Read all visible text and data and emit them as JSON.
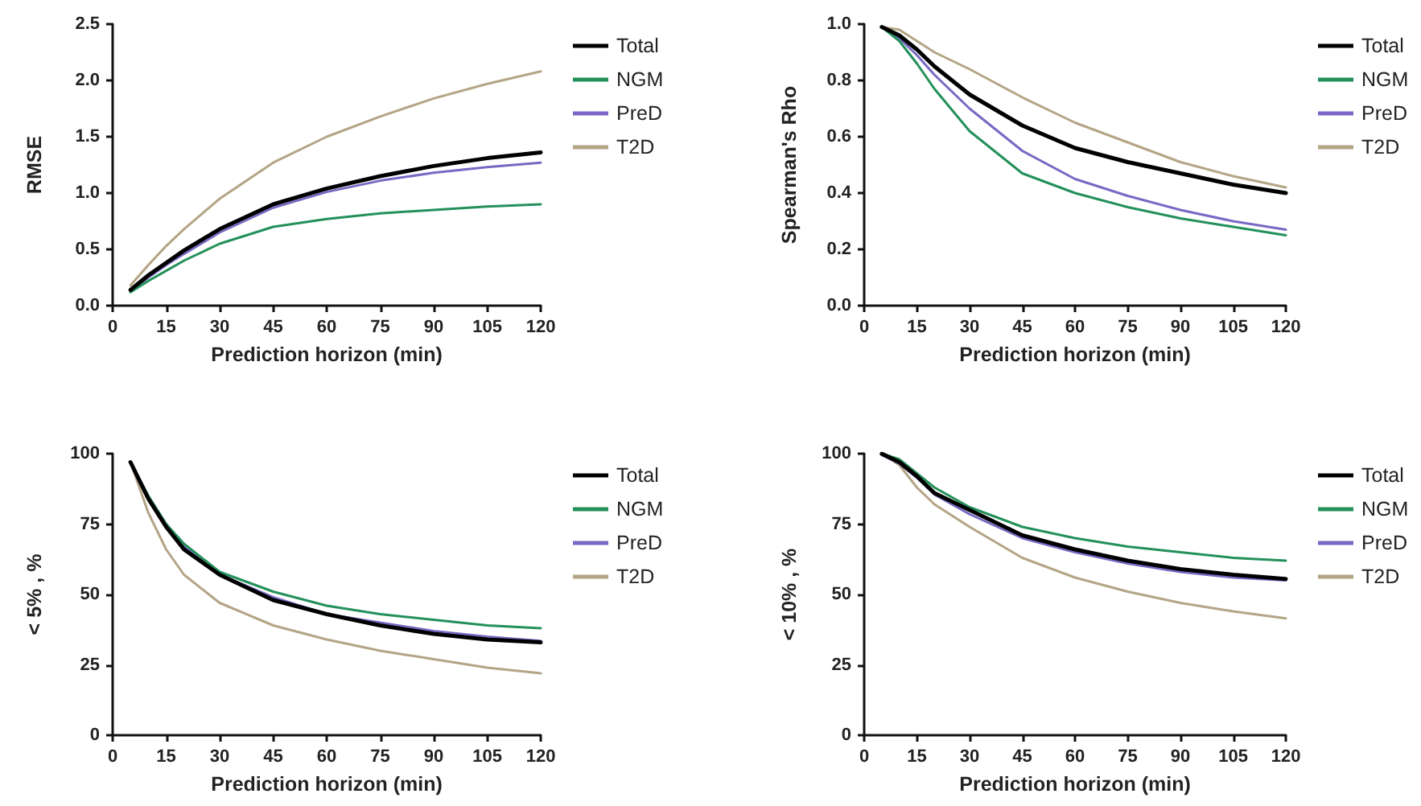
{
  "chart_data": [
    {
      "type": "line",
      "xlabel": "Prediction horizon (min)",
      "ylabel": "RMSE",
      "x": [
        5,
        10,
        15,
        20,
        30,
        45,
        60,
        75,
        90,
        105,
        120
      ],
      "xlim": [
        0,
        120
      ],
      "xticks": [
        0,
        15,
        30,
        45,
        60,
        75,
        90,
        105,
        120
      ],
      "ylim": [
        0,
        2.5
      ],
      "yticks": [
        {
          "value": 0,
          "label": "0.0"
        },
        0.5,
        {
          "value": 1,
          "label": "1.0"
        },
        1.5,
        {
          "value": 2,
          "label": "2.0"
        },
        2.5
      ],
      "legend": "right",
      "grid": false,
      "marker": "none",
      "line_style": "solid",
      "series": [
        {
          "name": "Total",
          "color": "#000000",
          "values": [
            0.14,
            0.27,
            0.38,
            0.49,
            0.68,
            0.9,
            1.04,
            1.15,
            1.24,
            1.31,
            1.36
          ]
        },
        {
          "name": "NGM",
          "color": "#23905a",
          "values": [
            0.12,
            0.22,
            0.31,
            0.4,
            0.55,
            0.7,
            0.77,
            0.82,
            0.85,
            0.88,
            0.9
          ]
        },
        {
          "name": "PreD",
          "color": "#7a68c4",
          "values": [
            0.13,
            0.25,
            0.36,
            0.46,
            0.65,
            0.87,
            1.01,
            1.11,
            1.18,
            1.23,
            1.27
          ]
        },
        {
          "name": "T2D",
          "color": "#b3a585",
          "values": [
            0.18,
            0.36,
            0.53,
            0.68,
            0.95,
            1.27,
            1.5,
            1.68,
            1.84,
            1.97,
            2.08
          ]
        }
      ]
    },
    {
      "type": "line",
      "xlabel": "Prediction horizon (min)",
      "ylabel": "Spearman's Rho",
      "x": [
        5,
        10,
        15,
        20,
        30,
        45,
        60,
        75,
        90,
        105,
        120
      ],
      "xlim": [
        0,
        120
      ],
      "xticks": [
        0,
        15,
        30,
        45,
        60,
        75,
        90,
        105,
        120
      ],
      "ylim": [
        0,
        1
      ],
      "yticks": [
        {
          "value": 0,
          "label": "0.0"
        },
        0.2,
        0.4,
        0.6,
        0.8,
        {
          "value": 1,
          "label": "1.0"
        }
      ],
      "legend": "right",
      "grid": false,
      "marker": "none",
      "line_style": "solid",
      "series": [
        {
          "name": "Total",
          "color": "#000000",
          "values": [
            0.99,
            0.96,
            0.91,
            0.85,
            0.75,
            0.64,
            0.56,
            0.51,
            0.47,
            0.43,
            0.4
          ]
        },
        {
          "name": "NGM",
          "color": "#23905a",
          "values": [
            0.99,
            0.94,
            0.86,
            0.77,
            0.62,
            0.47,
            0.4,
            0.35,
            0.31,
            0.28,
            0.25
          ]
        },
        {
          "name": "PreD",
          "color": "#7a68c4",
          "values": [
            0.99,
            0.95,
            0.89,
            0.82,
            0.7,
            0.55,
            0.45,
            0.39,
            0.34,
            0.3,
            0.27
          ]
        },
        {
          "name": "T2D",
          "color": "#b3a585",
          "values": [
            0.99,
            0.98,
            0.94,
            0.9,
            0.84,
            0.74,
            0.65,
            0.58,
            0.51,
            0.46,
            0.42
          ]
        }
      ]
    },
    {
      "type": "line",
      "xlabel": "Prediction horizon (min)",
      "ylabel": "< 5% , %",
      "x": [
        5,
        10,
        15,
        20,
        30,
        45,
        60,
        75,
        90,
        105,
        120
      ],
      "xlim": [
        0,
        120
      ],
      "xticks": [
        0,
        15,
        30,
        45,
        60,
        75,
        90,
        105,
        120
      ],
      "ylim": [
        0,
        100
      ],
      "yticks": [
        0,
        25,
        50,
        75,
        100
      ],
      "legend": "right",
      "grid": false,
      "marker": "none",
      "line_style": "solid",
      "series": [
        {
          "name": "Total",
          "color": "#000000",
          "values": [
            97,
            84,
            74,
            66,
            57,
            48,
            43,
            39,
            36,
            34,
            33
          ]
        },
        {
          "name": "NGM",
          "color": "#23905a",
          "values": [
            97,
            85,
            75,
            68,
            58,
            51,
            46,
            43,
            41,
            39,
            38
          ]
        },
        {
          "name": "PreD",
          "color": "#7a68c4",
          "values": [
            97,
            85,
            75,
            67,
            57,
            49,
            43,
            40,
            37,
            35,
            33.5
          ]
        },
        {
          "name": "T2D",
          "color": "#b3a585",
          "values": [
            97,
            79,
            66,
            57,
            47,
            39,
            34,
            30,
            27,
            24,
            22
          ]
        }
      ]
    },
    {
      "type": "line",
      "xlabel": "Prediction horizon (min)",
      "ylabel": "< 10% , %",
      "x": [
        5,
        10,
        15,
        20,
        30,
        45,
        60,
        75,
        90,
        105,
        120
      ],
      "xlim": [
        0,
        120
      ],
      "xticks": [
        0,
        15,
        30,
        45,
        60,
        75,
        90,
        105,
        120
      ],
      "ylim": [
        0,
        100
      ],
      "yticks": [
        0,
        25,
        50,
        75,
        100
      ],
      "legend": "right",
      "grid": false,
      "marker": "none",
      "line_style": "solid",
      "series": [
        {
          "name": "Total",
          "color": "#000000",
          "values": [
            100,
            97,
            92,
            86,
            80,
            71,
            66,
            62,
            59,
            57,
            55.5
          ]
        },
        {
          "name": "NGM",
          "color": "#23905a",
          "values": [
            100,
            98,
            93,
            88,
            81,
            74,
            70,
            67,
            65,
            63,
            62
          ]
        },
        {
          "name": "PreD",
          "color": "#7a68c4",
          "values": [
            99.5,
            96.5,
            91.5,
            85.5,
            78.5,
            70,
            65,
            61,
            58,
            56,
            55
          ]
        },
        {
          "name": "T2D",
          "color": "#b3a585",
          "values": [
            100,
            96,
            88,
            82,
            74,
            63,
            56,
            51,
            47,
            44,
            41.5
          ]
        }
      ]
    }
  ]
}
